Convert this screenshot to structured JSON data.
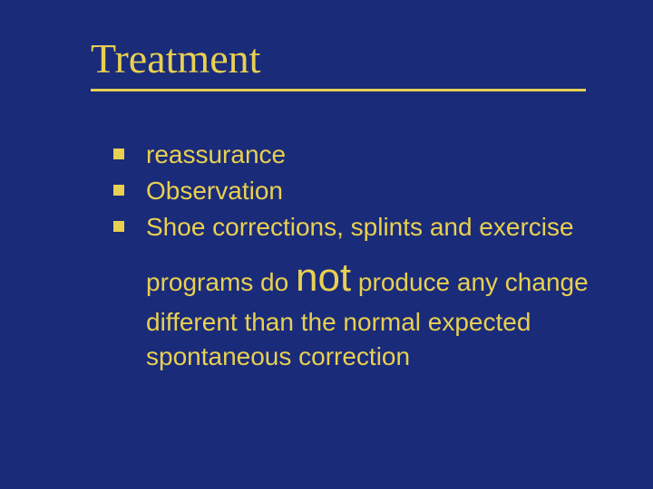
{
  "slide": {
    "title": "Treatment",
    "background_color": "#1a2b7a",
    "text_color": "#e8d050",
    "title_fontsize": 46,
    "body_fontsize": 28,
    "emph_fontsize": 44,
    "title_font_family": "Times New Roman",
    "body_font_family": "Arial",
    "bullets": [
      {
        "text": "reassurance"
      },
      {
        "text": "Observation"
      },
      {
        "text": "Shoe corrections, splints and exercise"
      }
    ],
    "continuation_before": "programs do ",
    "emph_word": "not",
    "continuation_after": " produce any change different than the normal expected spontaneous correction",
    "bullet_marker_color": "#e8d050",
    "underline_color": "#e8d050"
  }
}
